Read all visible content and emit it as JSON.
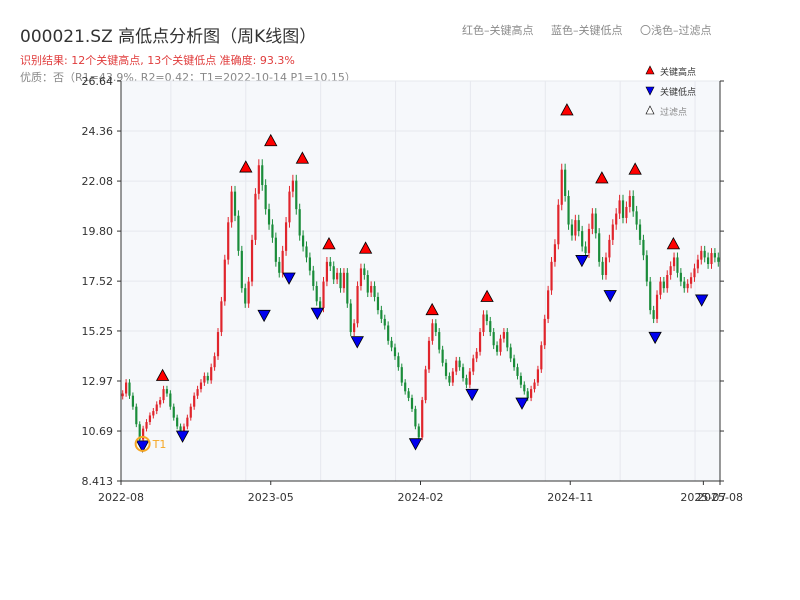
{
  "header": {
    "title": "000021.SZ 高低点分析图（周K线图）",
    "result_line": "识别结果: 12个关键高点, 13个关键低点  准确度: 93.3%",
    "quality_line": "优质：否（R1=43.9%, R2=0.42；T1=2022-10-14 P1=10.15）",
    "legend_red": "红色–关键高点",
    "legend_blue": "蓝色–关键低点",
    "legend_light": "〇浅色–过滤点"
  },
  "colors": {
    "up": "#e0252c",
    "down": "#1a8c3a",
    "high_marker": "#ff0000",
    "low_marker": "#0000ee",
    "t1_ring": "#f5a623",
    "grid": "#e6e8ee",
    "plot_bg": "#f6f8fb"
  },
  "chart_data": {
    "type": "candlestick",
    "ylim": [
      8.413,
      26.64
    ],
    "y_ticks": [
      "8.413",
      "10.69",
      "12.97",
      "15.25",
      "17.52",
      "19.80",
      "22.08",
      "24.36",
      "26.64"
    ],
    "x_range": [
      "2022-08",
      "2025-08"
    ],
    "x_ticks": [
      {
        "label": "2022-08",
        "month": 0
      },
      {
        "label": "2023-05",
        "month": 9
      },
      {
        "label": "2024-02",
        "month": 18
      },
      {
        "label": "2024-11",
        "month": 27
      },
      {
        "label": "2025-07",
        "month": 35
      },
      {
        "label": "2025-08",
        "month": 36
      }
    ],
    "legend": {
      "high": "关键高点",
      "low": "关键低点",
      "filtered": "过滤点"
    },
    "t1_label": "T1",
    "t1": {
      "month": 1.3,
      "price": 10.15
    },
    "key_highs": [
      {
        "month": 2.5,
        "price": 12.9
      },
      {
        "month": 7.5,
        "price": 22.4
      },
      {
        "month": 9.0,
        "price": 23.6
      },
      {
        "month": 10.9,
        "price": 22.8
      },
      {
        "month": 12.5,
        "price": 18.9
      },
      {
        "month": 14.7,
        "price": 18.7
      },
      {
        "month": 18.7,
        "price": 15.9
      },
      {
        "month": 22.0,
        "price": 16.5
      },
      {
        "month": 26.8,
        "price": 25.0
      },
      {
        "month": 28.9,
        "price": 21.9
      },
      {
        "month": 30.9,
        "price": 22.3
      },
      {
        "month": 33.2,
        "price": 18.9
      }
    ],
    "key_lows": [
      {
        "month": 1.3,
        "price": 10.15
      },
      {
        "month": 3.7,
        "price": 10.6
      },
      {
        "month": 8.6,
        "price": 16.1
      },
      {
        "month": 10.1,
        "price": 17.8
      },
      {
        "month": 11.8,
        "price": 16.2
      },
      {
        "month": 14.2,
        "price": 14.9
      },
      {
        "month": 17.7,
        "price": 10.25
      },
      {
        "month": 21.1,
        "price": 12.5
      },
      {
        "month": 24.1,
        "price": 12.1
      },
      {
        "month": 27.7,
        "price": 18.6
      },
      {
        "month": 29.4,
        "price": 17.0
      },
      {
        "month": 32.1,
        "price": 15.1
      },
      {
        "month": 34.9,
        "price": 16.8
      }
    ],
    "weekly_closes": [
      12.4,
      12.9,
      12.3,
      11.8,
      11.0,
      10.3,
      10.8,
      11.1,
      11.4,
      11.6,
      11.9,
      12.1,
      12.6,
      12.4,
      11.8,
      11.3,
      10.9,
      10.7,
      10.9,
      11.3,
      11.8,
      12.3,
      12.6,
      12.9,
      13.2,
      13.0,
      13.6,
      14.1,
      15.2,
      16.6,
      18.5,
      20.2,
      21.6,
      20.5,
      18.9,
      17.2,
      16.5,
      17.5,
      19.4,
      21.5,
      22.8,
      21.9,
      20.8,
      20.1,
      19.5,
      18.4,
      17.9,
      18.9,
      20.2,
      21.6,
      22.1,
      20.8,
      19.6,
      19.1,
      18.6,
      18.0,
      17.3,
      16.6,
      16.3,
      17.5,
      18.4,
      18.2,
      17.6,
      17.9,
      17.2,
      17.9,
      16.5,
      15.2,
      15.6,
      17.3,
      18.1,
      17.8,
      17.0,
      17.3,
      16.8,
      16.2,
      15.8,
      15.5,
      14.8,
      14.5,
      14.1,
      13.6,
      12.9,
      12.5,
      12.2,
      11.7,
      10.9,
      10.4,
      12.1,
      13.5,
      14.8,
      15.6,
      15.2,
      14.4,
      13.8,
      13.2,
      12.9,
      13.4,
      13.9,
      13.6,
      13.1,
      12.8,
      13.4,
      14.0,
      14.3,
      15.2,
      16.0,
      15.7,
      15.2,
      14.6,
      14.3,
      14.9,
      15.2,
      14.5,
      14.0,
      13.6,
      13.2,
      12.8,
      12.5,
      12.2,
      12.6,
      12.9,
      13.5,
      14.6,
      15.8,
      17.1,
      18.4,
      19.2,
      21.0,
      22.6,
      21.4,
      20.1,
      19.6,
      20.3,
      19.8,
      19.1,
      18.8,
      19.9,
      20.6,
      19.7,
      18.4,
      17.8,
      18.6,
      19.4,
      20.1,
      20.6,
      21.2,
      20.4,
      20.9,
      21.4,
      20.7,
      20.1,
      19.4,
      18.7,
      17.5,
      16.2,
      15.8,
      16.9,
      17.5,
      17.2,
      17.8,
      18.2,
      18.6,
      17.9,
      17.5,
      17.2,
      17.4,
      17.7,
      18.1,
      18.5,
      18.9,
      18.6,
      18.3,
      18.8,
      18.6,
      18.4
    ]
  }
}
